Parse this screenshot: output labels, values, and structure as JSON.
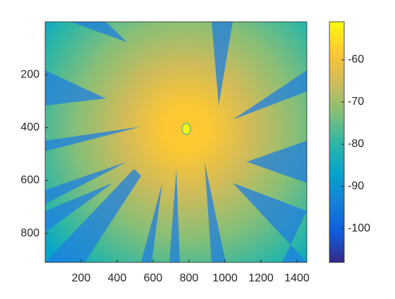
{
  "chart_data": {
    "type": "heatmap",
    "xlim": [
      0,
      1455
    ],
    "xticks": [
      200,
      400,
      600,
      800,
      1000,
      1200,
      1400
    ],
    "ylim": [
      0,
      910
    ],
    "yticks": [
      200,
      400,
      600,
      800
    ],
    "y_reversed": true,
    "source": {
      "x": 785,
      "y": 405
    },
    "colorbar": {
      "clim": [
        -108,
        -51
      ],
      "ticks": [
        -60,
        -70,
        -80,
        -90,
        -100
      ]
    },
    "colormap": [
      "#352a87",
      "#0f5cdd",
      "#1481d6",
      "#06a4ca",
      "#2eb7a4",
      "#87bf77",
      "#d1bb59",
      "#fec832",
      "#f9fb0e"
    ]
  }
}
